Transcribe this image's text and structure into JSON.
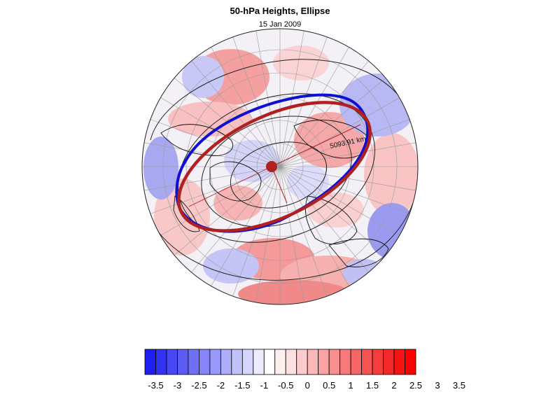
{
  "figure": {
    "title": "50-hPa Heights, Ellipse",
    "subtitle": "15 Jan 2009",
    "ellipse_label": "5093.91 km"
  },
  "colorbar": {
    "levels": [
      "-3.5",
      "-3",
      "-2.5",
      "-2",
      "-1.5",
      "-1",
      "-0.5",
      "0",
      "0.5",
      "1",
      "1.5",
      "2",
      "2.5",
      "3",
      "3.5"
    ],
    "colors": [
      "#1e1ef0",
      "#3232f3",
      "#4747f4",
      "#5c5cf5",
      "#7070f6",
      "#8585f8",
      "#9999f9",
      "#adadfa",
      "#c2c2fb",
      "#d6d6fc",
      "#ebebfd",
      "#ffffff",
      "#fff0f0",
      "#fde0e0",
      "#fccccc",
      "#fbb8b8",
      "#faa3a3",
      "#f88f8f",
      "#f77a7a",
      "#f66666",
      "#f55252",
      "#f43d3d",
      "#f32929",
      "#f51414",
      "#ff0000"
    ]
  },
  "legend_colors": {
    "ellipse_blue": "#1010d0",
    "ellipse_red": "#b02020",
    "center_marker": "#b02020"
  }
}
